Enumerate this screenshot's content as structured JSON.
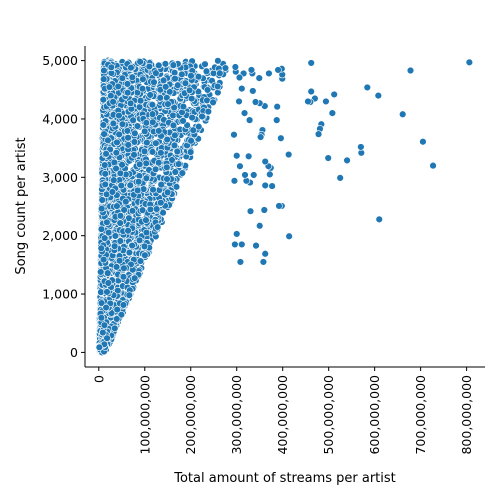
{
  "chart_data": {
    "type": "scatter",
    "title": "",
    "xlabel": "Total amount of streams per artist",
    "ylabel": "Song count per artist",
    "xlim": [
      -30000000,
      840000000
    ],
    "ylim": [
      -250,
      5250
    ],
    "x_ticks": [
      {
        "value": 0,
        "label": "0"
      },
      {
        "value": 100000000,
        "label": "100,000,000"
      },
      {
        "value": 200000000,
        "label": "200,000,000"
      },
      {
        "value": 300000000,
        "label": "300,000,000"
      },
      {
        "value": 400000000,
        "label": "400,000,000"
      },
      {
        "value": 500000000,
        "label": "500,000,000"
      },
      {
        "value": 600000000,
        "label": "600,000,000"
      },
      {
        "value": 700000000,
        "label": "700,000,000"
      },
      {
        "value": 800000000,
        "label": "800,000,000"
      }
    ],
    "y_ticks": [
      {
        "value": 0,
        "label": "0"
      },
      {
        "value": 1000,
        "label": "1,000"
      },
      {
        "value": 2000,
        "label": "2,000"
      },
      {
        "value": 3000,
        "label": "3,000"
      },
      {
        "value": 4000,
        "label": "4,000"
      },
      {
        "value": 5000,
        "label": "5,000"
      }
    ],
    "grid": false,
    "legend": "none",
    "marker_color": "#1f77b4",
    "marker_edge_color": "#ffffff",
    "points": [
      [
        806000000,
        4970
      ],
      [
        727000000,
        3200
      ],
      [
        705000000,
        3610
      ],
      [
        678000000,
        4830
      ],
      [
        661000000,
        4080
      ],
      [
        610000000,
        2280
      ],
      [
        608000000,
        4400
      ],
      [
        584000000,
        4540
      ],
      [
        571000000,
        3420
      ],
      [
        570000000,
        3520
      ],
      [
        540000000,
        3290
      ],
      [
        525000000,
        2990
      ],
      [
        512000000,
        4420
      ],
      [
        508000000,
        4100
      ],
      [
        499000000,
        3330
      ],
      [
        494000000,
        4300
      ],
      [
        484000000,
        3910
      ],
      [
        481000000,
        3830
      ],
      [
        478000000,
        3740
      ],
      [
        470000000,
        4350
      ],
      [
        462000000,
        4960
      ],
      [
        462000000,
        4470
      ],
      [
        460000000,
        4290
      ],
      [
        455000000,
        4300
      ],
      [
        414000000,
        1990
      ],
      [
        413000000,
        3390
      ],
      [
        399000000,
        4690
      ],
      [
        399000000,
        4760
      ],
      [
        398000000,
        2510
      ],
      [
        398000000,
        4860
      ],
      [
        396000000,
        3670
      ],
      [
        392000000,
        2510
      ],
      [
        390000000,
        4840
      ],
      [
        388000000,
        4210
      ],
      [
        387000000,
        3980
      ],
      [
        377000000,
        2850
      ],
      [
        374000000,
        3160
      ],
      [
        372000000,
        3050
      ],
      [
        370000000,
        4780
      ],
      [
        369000000,
        3190
      ],
      [
        362000000,
        1690
      ],
      [
        362000000,
        2860
      ],
      [
        362000000,
        3270
      ],
      [
        361000000,
        4220
      ],
      [
        360000000,
        2440
      ],
      [
        358000000,
        1550
      ],
      [
        356000000,
        3810
      ],
      [
        354000000,
        3730
      ],
      [
        352000000,
        3690
      ],
      [
        350000000,
        2170
      ],
      [
        350000000,
        4270
      ],
      [
        349000000,
        4700
      ],
      [
        342000000,
        1830
      ],
      [
        341000000,
        4290
      ],
      [
        337000000,
        3040
      ],
      [
        335000000,
        4480
      ],
      [
        334000000,
        4780
      ],
      [
        332000000,
        4840
      ],
      [
        330000000,
        2420
      ],
      [
        329000000,
        2910
      ],
      [
        328000000,
        3980
      ],
      [
        326000000,
        3360
      ],
      [
        321000000,
        2940
      ],
      [
        318000000,
        3040
      ],
      [
        317000000,
        4100
      ],
      [
        315000000,
        4780
      ],
      [
        311000000,
        1850
      ],
      [
        311000000,
        4520
      ],
      [
        308000000,
        1550
      ],
      [
        307000000,
        3190
      ],
      [
        306000000,
        4710
      ],
      [
        305000000,
        4300
      ],
      [
        300000000,
        2030
      ],
      [
        300000000,
        3370
      ],
      [
        298000000,
        4810
      ],
      [
        297000000,
        4890
      ],
      [
        296000000,
        1850
      ],
      [
        295000000,
        2940
      ],
      [
        294000000,
        3730
      ]
    ]
  }
}
